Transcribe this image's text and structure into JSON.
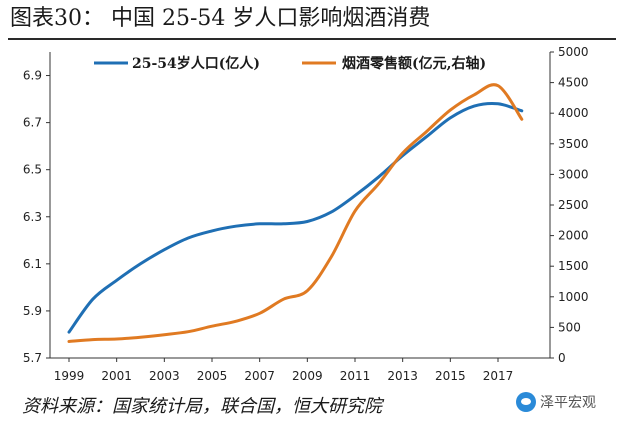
{
  "title": "图表30：   中国 25-54 岁人口影响烟酒消费",
  "source": "资料来源：国家统计局，联合国，恒大研究院",
  "watermark": "泽平宏观",
  "colors": {
    "population": "#1f6fb4",
    "liquor": "#e07a22"
  },
  "chart_data": {
    "type": "line",
    "title": "图表30：   中国 25-54 岁人口影响烟酒消费",
    "legend_position": "top",
    "grid": false,
    "x": [
      1999,
      2000,
      2001,
      2002,
      2003,
      2004,
      2005,
      2006,
      2007,
      2008,
      2009,
      2010,
      2011,
      2012,
      2013,
      2014,
      2015,
      2016,
      2017,
      2018
    ],
    "x_tick_labels": [
      "1999",
      "2001",
      "2003",
      "2005",
      "2007",
      "2009",
      "2011",
      "2013",
      "2015",
      "2017"
    ],
    "y_left": {
      "ylim": [
        5.7,
        7.0
      ],
      "ticks": [
        "5.7",
        "5.9",
        "6.1",
        "6.3",
        "6.5",
        "6.7",
        "6.9"
      ]
    },
    "y_right": {
      "ylim": [
        0,
        5000
      ],
      "ticks": [
        "0",
        "500",
        "1000",
        "1500",
        "2000",
        "2500",
        "3000",
        "3500",
        "4000",
        "4500",
        "5000"
      ]
    },
    "series": [
      {
        "name": "25-54岁人口(亿人)",
        "axis": "left",
        "color": "#1f6fb4",
        "values": [
          5.81,
          5.95,
          6.03,
          6.1,
          6.16,
          6.21,
          6.24,
          6.26,
          6.27,
          6.27,
          6.28,
          6.32,
          6.39,
          6.47,
          6.56,
          6.64,
          6.72,
          6.77,
          6.78,
          6.75
        ]
      },
      {
        "name": "烟酒零售额(亿元,右轴)",
        "axis": "right",
        "color": "#e07a22",
        "values": [
          270,
          300,
          310,
          340,
          380,
          430,
          520,
          600,
          730,
          960,
          1100,
          1650,
          2400,
          2850,
          3350,
          3700,
          4050,
          4300,
          4450,
          3900
        ]
      }
    ]
  }
}
